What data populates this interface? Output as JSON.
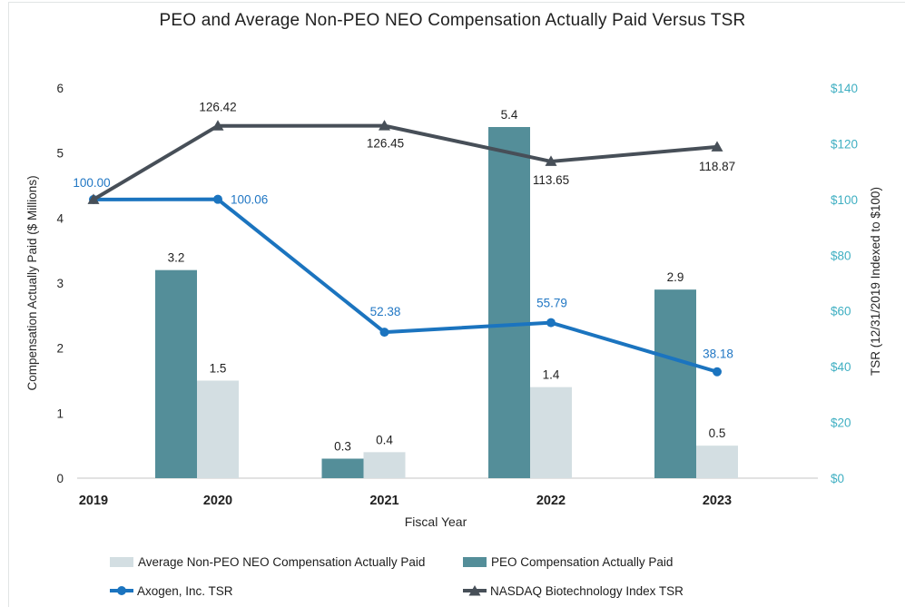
{
  "title": "PEO and Average Non-PEO NEO Compensation Actually Paid Versus TSR",
  "chart_data": {
    "type": "combo-bar-line",
    "categories": [
      "2019",
      "2020",
      "2021",
      "2022",
      "2023"
    ],
    "xlabel": "Fiscal Year",
    "grid": false,
    "axis_line_color": "#d9d9d9",
    "left_axis": {
      "label": "Compensation Actually Paid ($ Millions)",
      "min": 0,
      "max": 6,
      "ticks": [
        "0",
        "1",
        "2",
        "3",
        "4",
        "5",
        "6"
      ],
      "color": "#262626"
    },
    "right_axis": {
      "label": "TSR (12/31/2019 Indexed to $100)",
      "min": 0,
      "max": 140,
      "ticks": [
        "$0",
        "$20",
        "$40",
        "$60",
        "$80",
        "$100",
        "$120",
        "$140"
      ],
      "color": "#3fafc2",
      "title_color": "#262626"
    },
    "bar_series": [
      {
        "name": "PEO Compensation Actually Paid",
        "color": "#548e99",
        "axis": "left",
        "values": [
          null,
          3.2,
          0.3,
          5.4,
          2.9
        ],
        "labels": [
          "",
          "3.2",
          "0.3",
          "5.4",
          "2.9"
        ]
      },
      {
        "name": "Average Non-PEO NEO Compensation Actually Paid",
        "color": "#d3dee2",
        "axis": "left",
        "values": [
          null,
          1.5,
          0.4,
          1.4,
          0.5
        ],
        "labels": [
          "",
          "1.5",
          "0.4",
          "1.4",
          "0.5"
        ]
      }
    ],
    "line_series": [
      {
        "name": "Axogen, Inc. TSR",
        "color": "#1b74bf",
        "label_color": "#2177c4",
        "marker": "circle",
        "axis": "right",
        "values": [
          100.0,
          100.06,
          52.38,
          55.79,
          38.18
        ],
        "labels": [
          "100.00",
          "100.06",
          "52.38",
          "55.79",
          "38.18"
        ]
      },
      {
        "name": "NASDAQ Biotechnology Index TSR",
        "color": "#474f58",
        "label_color": "#1f1f1f",
        "marker": "triangle",
        "axis": "right",
        "values": [
          100.0,
          126.42,
          126.45,
          113.65,
          118.87
        ],
        "labels": [
          "",
          "126.42",
          "126.45",
          "113.65",
          "118.87"
        ]
      }
    ],
    "legend": {
      "items": [
        {
          "label": "Average Non-PEO NEO Compensation Actually Paid",
          "type": "swatch",
          "color": "#d3dee2",
          "row": 0,
          "col": 0
        },
        {
          "label": "PEO Compensation Actually Paid",
          "type": "swatch",
          "color": "#548e99",
          "row": 0,
          "col": 1
        },
        {
          "label": "Axogen, Inc. TSR",
          "type": "line-circle",
          "color": "#1b74bf",
          "row": 1,
          "col": 0
        },
        {
          "label": "NASDAQ Biotechnology Index TSR",
          "type": "line-triangle",
          "color": "#474f58",
          "row": 1,
          "col": 1
        }
      ]
    }
  }
}
